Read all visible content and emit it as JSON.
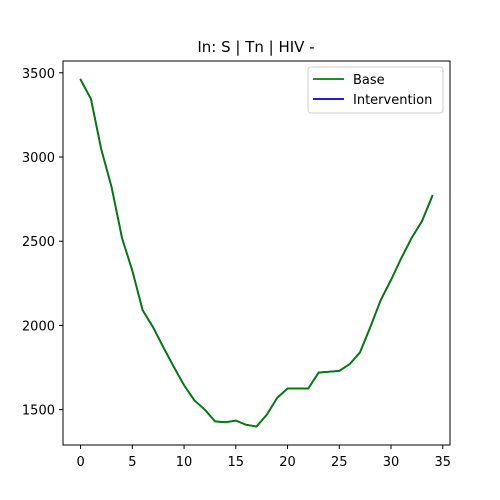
{
  "chart_data": {
    "type": "line",
    "title": "In: S | Tn | HIV -",
    "xlabel": "",
    "ylabel": "",
    "xlim": [
      -1.7,
      35.7
    ],
    "ylim": [
      1290,
      3570
    ],
    "xticks": [
      0,
      5,
      10,
      15,
      20,
      25,
      30,
      35
    ],
    "yticks": [
      1500,
      2000,
      2500,
      3000,
      3500
    ],
    "grid": false,
    "legend_position": "top-right",
    "x": [
      0,
      1,
      2,
      3,
      4,
      5,
      6,
      7,
      8,
      9,
      10,
      11,
      12,
      13,
      14,
      15,
      16,
      17,
      18,
      19,
      20,
      21,
      22,
      23,
      24,
      25,
      26,
      27,
      28,
      29,
      30,
      31,
      32,
      33,
      34
    ],
    "series": [
      {
        "name": "Base",
        "color": "#008000",
        "values": [
          3460,
          3345,
          3045,
          2820,
          2520,
          2325,
          2090,
          1990,
          1870,
          1755,
          1645,
          1555,
          1500,
          1430,
          1425,
          1435,
          1410,
          1400,
          1470,
          1570,
          1625,
          1625,
          1625,
          1720,
          1725,
          1730,
          1770,
          1840,
          1990,
          2150,
          2270,
          2400,
          2520,
          2620,
          2770
        ]
      },
      {
        "name": "Intervention",
        "color": "#0000cc",
        "values": [
          3460,
          3345,
          3045,
          2820,
          2520,
          2325,
          2090,
          1990,
          1870,
          1755,
          1645,
          1555,
          1500,
          1430,
          1425,
          1435,
          1410,
          1400,
          1470,
          1570,
          1625,
          1625,
          1625,
          1720,
          1725,
          1730,
          1770,
          1840,
          1990,
          2150,
          2270,
          2400,
          2520,
          2620,
          2770
        ]
      }
    ]
  }
}
